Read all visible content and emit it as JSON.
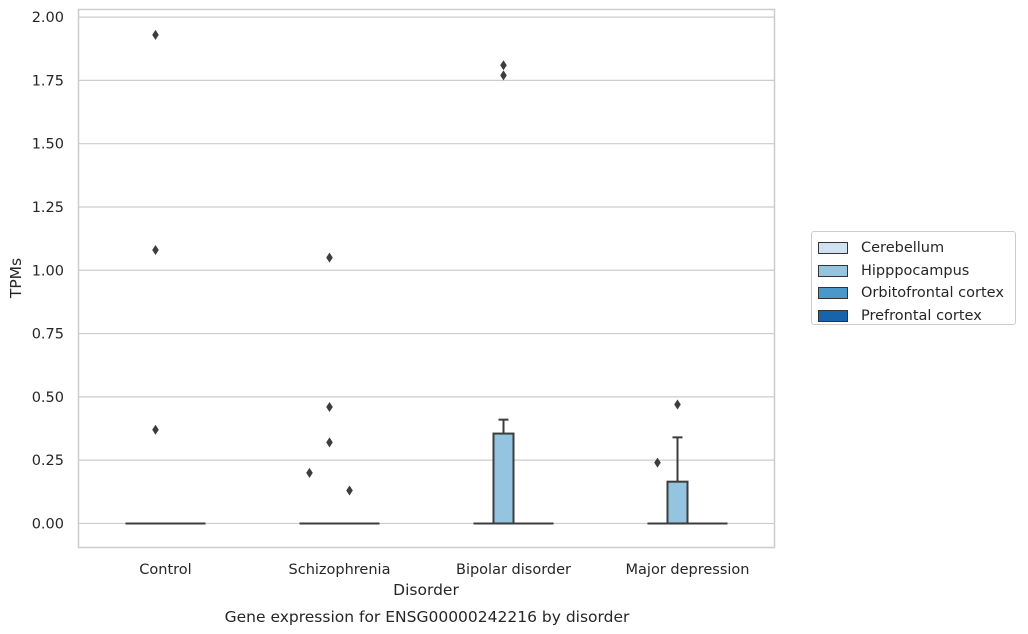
{
  "chart_data": {
    "type": "box",
    "title": "",
    "xlabel": "Disorder",
    "ylabel": "TPMs",
    "caption": "Gene expression for ENSG00000242216 by disorder",
    "ylim": [
      -0.095,
      2.03
    ],
    "yticks": [
      "0.00",
      "0.25",
      "0.50",
      "0.75",
      "1.00",
      "1.25",
      "1.50",
      "1.75",
      "2.00"
    ],
    "grid": "horizontal",
    "legend_position": "right",
    "categories": [
      "Control",
      "Schizophrenia",
      "Bipolar disorder",
      "Major depression"
    ],
    "series": [
      {
        "name": "Cerebellum",
        "color": "#d0e1f2",
        "boxes": [
          {
            "q1": 0,
            "median": 0,
            "q3": 0,
            "whisker_low": 0,
            "whisker_high": 0,
            "outliers": []
          },
          {
            "q1": 0,
            "median": 0,
            "q3": 0,
            "whisker_low": 0,
            "whisker_high": 0,
            "outliers": []
          },
          {
            "q1": 0,
            "median": 0,
            "q3": 0,
            "whisker_low": 0,
            "whisker_high": 0,
            "outliers": []
          },
          {
            "q1": 0,
            "median": 0,
            "q3": 0,
            "whisker_low": 0,
            "whisker_high": 0,
            "outliers": []
          }
        ]
      },
      {
        "name": "Hipppocampus",
        "color": "#94c4df",
        "boxes": [
          {
            "q1": 0,
            "median": 0,
            "q3": 0,
            "whisker_low": 0,
            "whisker_high": 0,
            "outliers": [
              1.93,
              1.08,
              0.37
            ]
          },
          {
            "q1": 0,
            "median": 0,
            "q3": 0,
            "whisker_low": 0,
            "whisker_high": 0,
            "outliers": [
              1.05,
              0.46,
              0.32
            ]
          },
          {
            "q1": 0,
            "median": 0,
            "q3": 0.355,
            "whisker_low": 0,
            "whisker_high": 0.41,
            "outliers": [
              1.81,
              1.77
            ]
          },
          {
            "q1": 0,
            "median": 0,
            "q3": 0.165,
            "whisker_low": 0,
            "whisker_high": 0.34,
            "outliers": [
              0.47
            ]
          }
        ]
      },
      {
        "name": "Orbitofrontal cortex",
        "color": "#4a98c9",
        "boxes": [
          {
            "q1": 0,
            "median": 0,
            "q3": 0,
            "whisker_low": 0,
            "whisker_high": 0,
            "outliers": []
          },
          {
            "q1": 0,
            "median": 0,
            "q3": 0,
            "whisker_low": 0,
            "whisker_high": 0,
            "outliers": [
              0.13
            ]
          },
          {
            "q1": 0,
            "median": 0,
            "q3": 0,
            "whisker_low": 0,
            "whisker_high": 0,
            "outliers": []
          },
          {
            "q1": 0,
            "median": 0,
            "q3": 0,
            "whisker_low": 0,
            "whisker_high": 0,
            "outliers": []
          }
        ]
      },
      {
        "name": "Prefrontal cortex",
        "color": "#1764ab",
        "boxes": [
          {
            "q1": 0,
            "median": 0,
            "q3": 0,
            "whisker_low": 0,
            "whisker_high": 0,
            "outliers": []
          },
          {
            "q1": 0,
            "median": 0,
            "q3": 0,
            "whisker_low": 0,
            "whisker_high": 0,
            "outliers": []
          },
          {
            "q1": 0,
            "median": 0,
            "q3": 0,
            "whisker_low": 0,
            "whisker_high": 0,
            "outliers": []
          },
          {
            "q1": 0,
            "median": 0,
            "q3": 0,
            "whisker_low": 0,
            "whisker_high": 0,
            "outliers": []
          }
        ]
      }
    ],
    "extra_outliers": [
      {
        "category": "Schizophrenia",
        "series": "Cerebellum",
        "value": 0.2
      },
      {
        "category": "Major depression",
        "series": "Cerebellum",
        "value": 0.24
      }
    ]
  }
}
